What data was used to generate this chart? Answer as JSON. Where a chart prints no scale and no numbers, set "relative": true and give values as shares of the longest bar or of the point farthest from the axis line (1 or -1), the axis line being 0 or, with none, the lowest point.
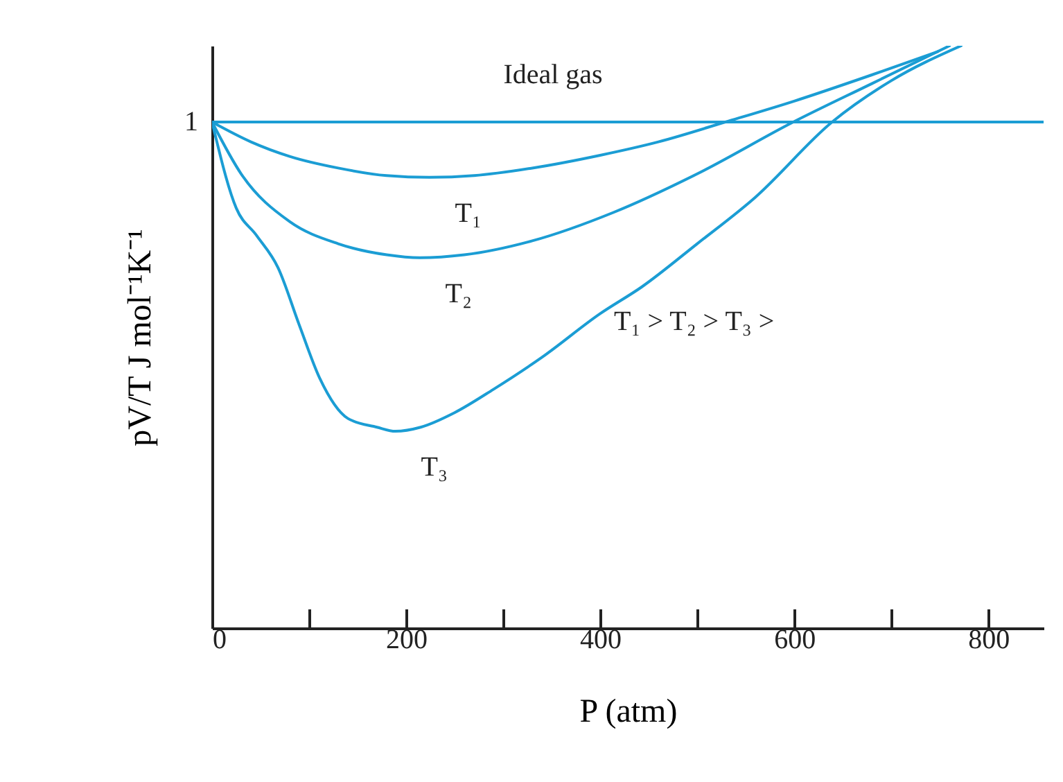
{
  "chart_data": {
    "type": "line",
    "relative": true,
    "xlabel": "P (atm)",
    "ylabel": "pV/T J mol⁻¹K⁻¹",
    "xlim": [
      0,
      857
    ],
    "xticks": [
      0,
      {
        "value": 100,
        "label": null
      },
      200,
      {
        "value": 300,
        "label": null
      },
      400,
      {
        "value": 500,
        "label": null
      },
      600,
      {
        "value": 700,
        "label": null
      },
      800
    ],
    "series": [
      {
        "name": "Ideal gas",
        "color": "#1b9dd4",
        "x": [
          0,
          857
        ],
        "values": [
          0.869,
          0.869
        ]
      },
      {
        "name": "T₁",
        "color": "#1b9dd4",
        "x": [
          0,
          40,
          80,
          130,
          180,
          224,
          270,
          330,
          400,
          460,
          529,
          600,
          680,
          748
        ],
        "values": [
          0.869,
          0.835,
          0.81,
          0.79,
          0.777,
          0.774,
          0.777,
          0.79,
          0.812,
          0.835,
          0.869,
          0.905,
          0.95,
          0.99
        ]
      },
      {
        "name": "T₂",
        "color": "#1b9dd4",
        "x": [
          0,
          30,
          80,
          130,
          180,
          214,
          260,
          330,
          414,
          500,
          599,
          680,
          760
        ],
        "values": [
          0.869,
          0.78,
          0.698,
          0.66,
          0.641,
          0.636,
          0.641,
          0.665,
          0.714,
          0.78,
          0.869,
          0.935,
          1.0
        ]
      },
      {
        "name": "T₃",
        "color": "#1b9dd4",
        "x": [
          0,
          25,
          46,
          68,
          90,
          111,
          140,
          170,
          189,
          215,
          250,
          290,
          340,
          400,
          443,
          500,
          560,
          639,
          700,
          772
        ],
        "values": [
          0.869,
          0.721,
          0.674,
          0.619,
          0.52,
          0.429,
          0.36,
          0.345,
          0.338,
          0.345,
          0.37,
          0.41,
          0.465,
          0.54,
          0.586,
          0.66,
          0.74,
          0.869,
          0.94,
          1.0
        ]
      }
    ],
    "annotations": [
      "1",
      "T₁ > T₂ > T₃ >"
    ],
    "grid": false,
    "line_style": "solid"
  }
}
